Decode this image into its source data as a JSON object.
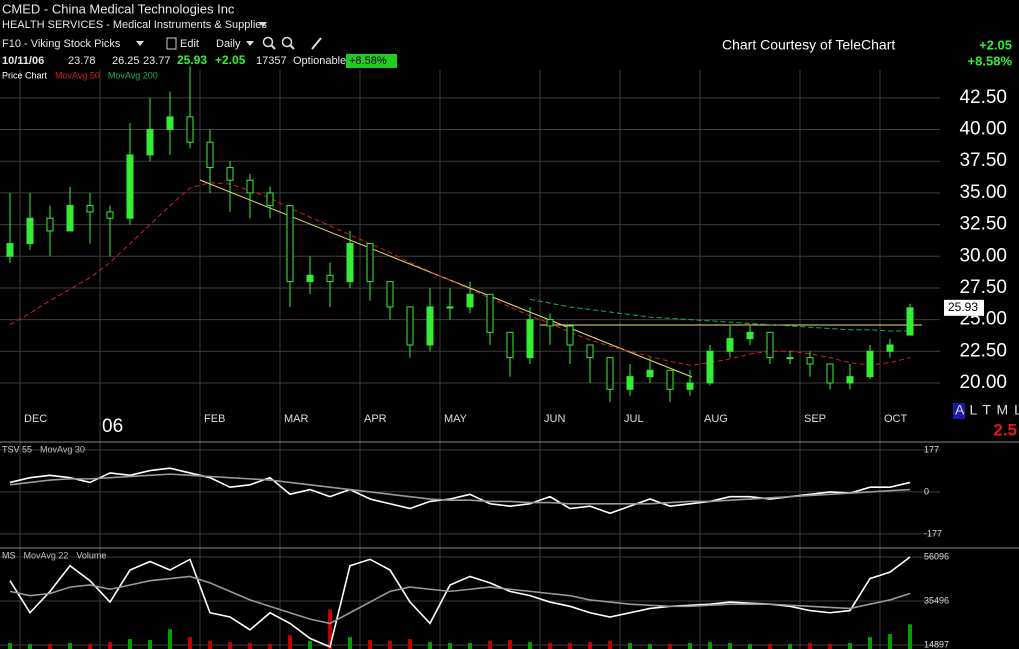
{
  "header": {
    "symbol_line": "CMED - China Medical Technologies Inc",
    "industry": "HEALTH SERVICES - Medical Instruments & Supplies",
    "watchlist": "F10 - Viking Stock Picks",
    "edit": "Edit",
    "period": "Daily",
    "date": "10/11/06",
    "open": "23.78",
    "high": "26.25",
    "low": "23.77",
    "last": "25.93",
    "change": "+2.05",
    "volume": "17357",
    "optionable": "Optionable",
    "change_pct": "+8.58%",
    "courtesy": "Chart Courtesy of TeleChart",
    "right_change": "+2.05",
    "right_change_pct": "+8.58%",
    "altml": "A L T M L",
    "altml_value": "2.5"
  },
  "chart_data": [
    {
      "type": "candlestick",
      "title": "Price Chart",
      "color": "#33ee33",
      "categories": [
        null,
        "DEC",
        null,
        null,
        null,
        "06",
        null,
        null,
        null,
        null,
        "FEB",
        null,
        null,
        null,
        "MAR",
        null,
        null,
        null,
        "APR",
        null,
        null,
        null,
        "MAY",
        null,
        null,
        null,
        null,
        "JUN",
        null,
        null,
        null,
        "JUL",
        null,
        null,
        null,
        "AUG",
        null,
        null,
        null,
        null,
        "SEP",
        null,
        null,
        null,
        "OCT",
        null
      ],
      "open": [
        30,
        31,
        33,
        32,
        34,
        33.5,
        33,
        38,
        40,
        41,
        39,
        37,
        36,
        35,
        34,
        28,
        28.5,
        28,
        31,
        28,
        26,
        23,
        26,
        26,
        27,
        24,
        22,
        25,
        24.5,
        23,
        22,
        19.5,
        20.5,
        21,
        19.5,
        20,
        22.5,
        23.5,
        24,
        22,
        22,
        21.5,
        20,
        20.5,
        22.5,
        23.78
      ],
      "high": [
        35,
        35,
        34,
        35.5,
        35,
        34,
        40.5,
        42.5,
        43,
        45,
        40,
        37.5,
        36.5,
        35.5,
        34,
        30,
        29.5,
        32,
        31,
        28,
        26,
        27.5,
        27.5,
        28,
        27,
        24,
        26,
        25.5,
        24.5,
        23,
        22,
        21.5,
        22,
        21,
        21,
        23,
        24.5,
        24.5,
        24,
        22.5,
        22.5,
        21.5,
        21.5,
        23,
        23.5,
        26.25
      ],
      "low": [
        29.5,
        30.5,
        30,
        32,
        31,
        30,
        32.5,
        37.5,
        38,
        38.5,
        35,
        33.5,
        33,
        33,
        26,
        27,
        26,
        27.5,
        26.5,
        25,
        22,
        22.5,
        25,
        25.5,
        23,
        20.5,
        21.5,
        23,
        21.5,
        20,
        18.5,
        19,
        20,
        18.5,
        19,
        19.8,
        22,
        23,
        21.5,
        21.5,
        20.5,
        19.5,
        19.5,
        20.3,
        22,
        23.77
      ],
      "close": [
        31,
        33,
        32,
        34,
        33.5,
        33,
        38,
        40,
        41,
        39,
        37,
        36,
        35,
        34,
        28,
        28.5,
        28,
        31,
        28,
        26,
        23,
        26,
        26,
        27,
        24,
        22,
        25,
        24.5,
        23,
        22,
        19.5,
        20.5,
        21,
        19.5,
        20,
        22.5,
        23.5,
        24,
        22,
        22,
        21.5,
        20,
        20.5,
        22.5,
        23,
        25.93
      ],
      "series": [
        {
          "name": "MovAvg 50",
          "color": "#d02020",
          "values": [
            24.6,
            25.5,
            26.5,
            27.4,
            28.3,
            29.5,
            31,
            32.5,
            34,
            35.4,
            35.8,
            35.7,
            35.2,
            34.6,
            33.8,
            33.1,
            32.4,
            31.7,
            31,
            30.3,
            29.5,
            28.8,
            28.1,
            27.4,
            26.7,
            26,
            25.3,
            24.7,
            24,
            23.4,
            22.9,
            22.5,
            22.1,
            21.7,
            21.4,
            21.6,
            21.9,
            22.3,
            22.5,
            22.5,
            22.3,
            22,
            21.6,
            21.4,
            21.6,
            22
          ]
        },
        {
          "name": "MovAvg 200",
          "color": "#20b050",
          "values": [
            null,
            null,
            null,
            null,
            null,
            null,
            null,
            null,
            null,
            null,
            null,
            null,
            null,
            null,
            null,
            null,
            null,
            null,
            null,
            null,
            null,
            null,
            null,
            null,
            null,
            null,
            26.6,
            26.3,
            26.0,
            25.8,
            25.6,
            25.4,
            25.2,
            25.1,
            25.0,
            24.9,
            24.8,
            24.7,
            24.6,
            24.5,
            24.4,
            24.3,
            24.2,
            24.2,
            24.1,
            24.1
          ]
        }
      ],
      "ylim": [
        15.5,
        44.7
      ],
      "yticks": [
        {
          "value": 20,
          "label": "20.00"
        },
        {
          "value": 22.5,
          "label": "22.50"
        },
        {
          "value": 25,
          "label": "25.00"
        },
        {
          "value": 27.5,
          "label": "27.50"
        },
        {
          "value": 30,
          "label": "30.00"
        },
        {
          "value": 32.5,
          "label": "32.50"
        },
        {
          "value": 35,
          "label": "35.00"
        },
        {
          "value": 37.5,
          "label": "37.50"
        },
        {
          "value": 40,
          "label": "40.00"
        },
        {
          "value": 42.5,
          "label": "42.50"
        }
      ],
      "grid": true
    },
    {
      "type": "line",
      "series": [
        {
          "name": "TSV 55",
          "color": "#ffffff",
          "values": [
            40,
            60,
            70,
            60,
            40,
            80,
            70,
            90,
            100,
            80,
            60,
            20,
            30,
            60,
            -10,
            10,
            -20,
            10,
            -30,
            -50,
            -70,
            -40,
            -30,
            -10,
            -50,
            -60,
            -50,
            -20,
            -70,
            -60,
            -90,
            -60,
            -30,
            -60,
            -50,
            -40,
            -20,
            -20,
            -30,
            -20,
            -10,
            0,
            -5,
            20,
            20,
            40
          ]
        },
        {
          "name": "MovAvg 30",
          "color": "#999999",
          "values": [
            30,
            40,
            50,
            55,
            55,
            60,
            65,
            70,
            75,
            70,
            65,
            60,
            55,
            50,
            40,
            30,
            20,
            10,
            0,
            -10,
            -20,
            -30,
            -35,
            -35,
            -40,
            -40,
            -45,
            -45,
            -50,
            -50,
            -50,
            -50,
            -50,
            -45,
            -40,
            -40,
            -35,
            -30,
            -25,
            -20,
            -15,
            -10,
            -5,
            0,
            5,
            10
          ]
        }
      ],
      "ylim": [
        -228,
        202
      ],
      "yticks": [
        177,
        0,
        -177
      ],
      "grid": true
    },
    {
      "type": "line",
      "series": [
        {
          "name": "MS",
          "color": "#ffffff",
          "values": [
            45000,
            30000,
            40000,
            52000,
            45000,
            35000,
            50000,
            54000,
            50000,
            55000,
            30000,
            28000,
            22000,
            30000,
            25000,
            18000,
            14000,
            52000,
            55000,
            50000,
            35000,
            25000,
            43000,
            47000,
            44000,
            40000,
            38000,
            35000,
            33000,
            30000,
            28000,
            30000,
            32000,
            33000,
            33500,
            34000,
            35000,
            34500,
            34000,
            33000,
            31000,
            30000,
            31000,
            46000,
            49000,
            56096
          ]
        },
        {
          "name": "MovAvg 22",
          "color": "#999999",
          "values": [
            40000,
            38000,
            39000,
            42000,
            43000,
            41000,
            43000,
            45000,
            46000,
            47000,
            44000,
            40000,
            36000,
            33000,
            30000,
            27000,
            25000,
            30000,
            35000,
            40000,
            42000,
            41000,
            40000,
            41000,
            42000,
            41000,
            40000,
            39000,
            38000,
            36000,
            35000,
            34000,
            33500,
            33000,
            33000,
            33500,
            34000,
            34000,
            34000,
            33500,
            33000,
            32500,
            32000,
            34000,
            36000,
            39000
          ]
        },
        {
          "name": "Volume",
          "type": "bar",
          "axis": "y2",
          "color": "#00a000",
          "colors": [
            "#00a000",
            "#00a000",
            "#c00000",
            "#00a000",
            "#c00000",
            "#c00000",
            "#00a000",
            "#00a000",
            "#00a000",
            "#c00000",
            "#c00000",
            "#c00000",
            "#c00000",
            "#c00000",
            "#c00000",
            "#00a000",
            "#c00000",
            "#00a000",
            "#c00000",
            "#c00000",
            "#c00000",
            "#00a000",
            "#00a000",
            "#00a000",
            "#c00000",
            "#c00000",
            "#00a000",
            "#c00000",
            "#c00000",
            "#c00000",
            "#c00000",
            "#00a000",
            "#00a000",
            "#c00000",
            "#00a000",
            "#00a000",
            "#00a000",
            "#00a000",
            "#c00000",
            "#00a000",
            "#c00000",
            "#c00000",
            "#00a000",
            "#00a000",
            "#00a000",
            "#00a000"
          ],
          "values": [
            6,
            5,
            5,
            6,
            5,
            7,
            10,
            9,
            20,
            12,
            8,
            7,
            6,
            5,
            14,
            8,
            40,
            12,
            9,
            8,
            10,
            7,
            6,
            6,
            8,
            9,
            7,
            6,
            6,
            7,
            8,
            6,
            5,
            5,
            6,
            7,
            6,
            5,
            5,
            5,
            6,
            5,
            6,
            12,
            15,
            25
          ]
        }
      ],
      "ylim": [
        13023,
        59373
      ],
      "yticks": [
        56096,
        35496,
        14897
      ],
      "y2lim": [
        0,
        100
      ],
      "grid": true
    }
  ]
}
